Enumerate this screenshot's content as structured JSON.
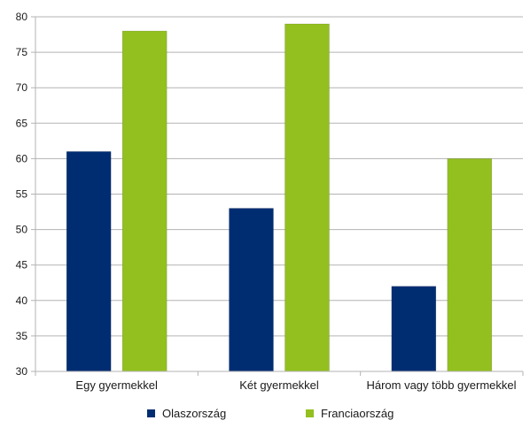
{
  "chart_data": {
    "type": "bar",
    "categories": [
      "Egy gyermekkel",
      "Két gyermekkel",
      "Három vagy több gyermekkel"
    ],
    "series": [
      {
        "name": "Olaszország",
        "values": [
          61,
          53,
          42
        ],
        "color": "#002d72"
      },
      {
        "name": "Franciaország",
        "values": [
          78,
          79,
          60
        ],
        "color": "#93c01f"
      }
    ],
    "title": "",
    "xlabel": "",
    "ylabel": "",
    "ylim": [
      30,
      80
    ],
    "yticks": [
      30,
      35,
      40,
      45,
      50,
      55,
      60,
      65,
      70,
      75,
      80
    ],
    "grid": true,
    "legend": "bottom"
  }
}
